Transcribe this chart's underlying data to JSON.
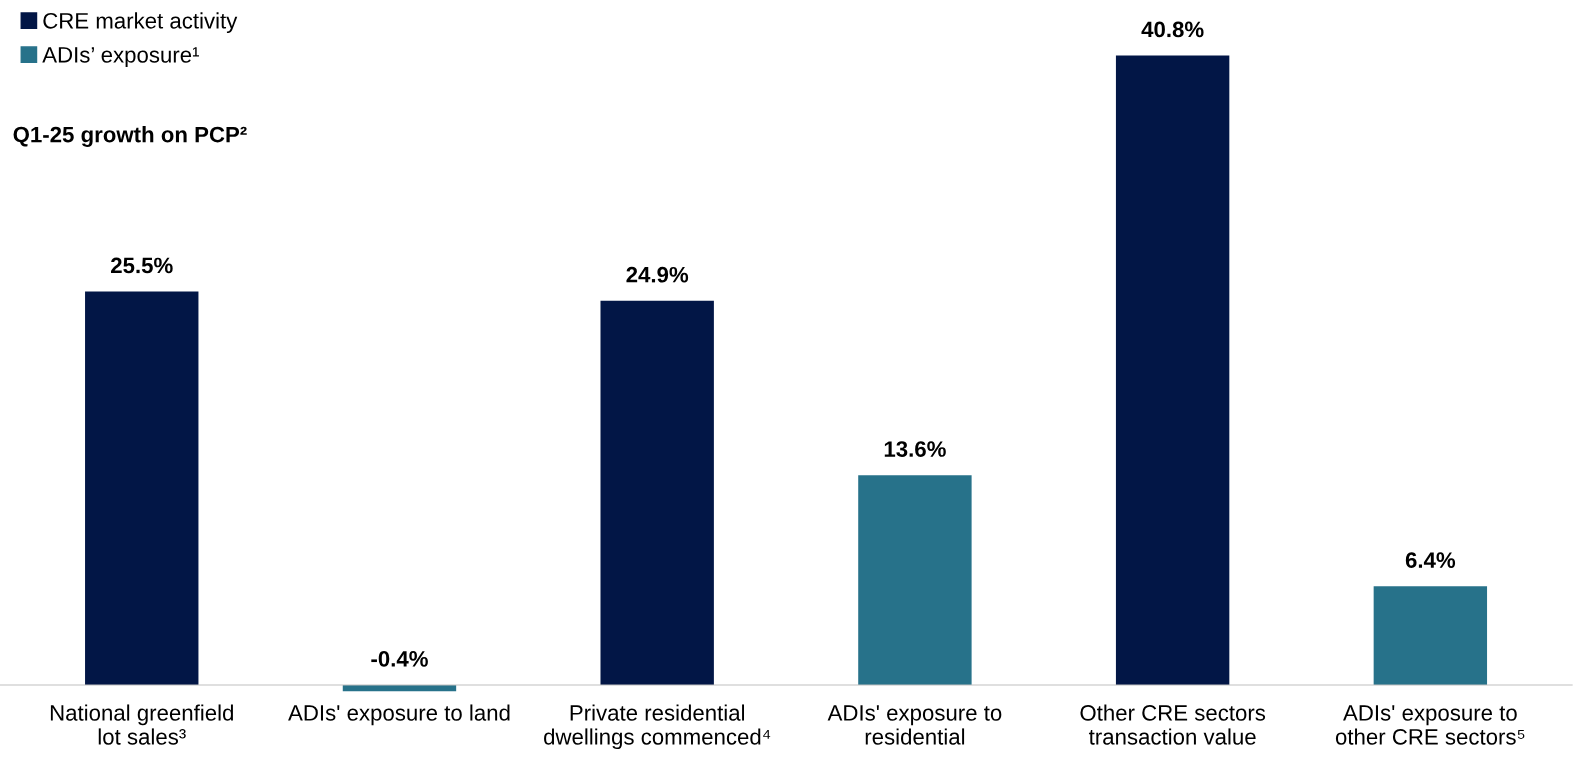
{
  "chart_data": {
    "type": "bar",
    "subtitle": "Q1-25 growth on PCP²",
    "categories": [
      "National greenfield\nlot sales³",
      "ADIs' exposure to land",
      "Private residential\ndwellings commenced⁴",
      "ADIs' exposure to\nresidential",
      "Other CRE sectors\ntransaction value",
      "ADIs' exposure to\nother CRE sectors⁵"
    ],
    "series": [
      {
        "name": "CRE market activity",
        "color": "#021646",
        "values": [
          25.5,
          null,
          24.9,
          null,
          40.8,
          null
        ],
        "value_labels": [
          "25.5%",
          null,
          "24.9%",
          null,
          "40.8%",
          null
        ]
      },
      {
        "name": "ADIs’ exposure¹",
        "color": "#27728a",
        "values": [
          null,
          -0.4,
          null,
          13.6,
          null,
          6.4
        ],
        "value_labels": [
          null,
          "-0.4%",
          null,
          "13.6%",
          null,
          "6.4%"
        ]
      }
    ],
    "legend": "top left",
    "grid": false
  }
}
